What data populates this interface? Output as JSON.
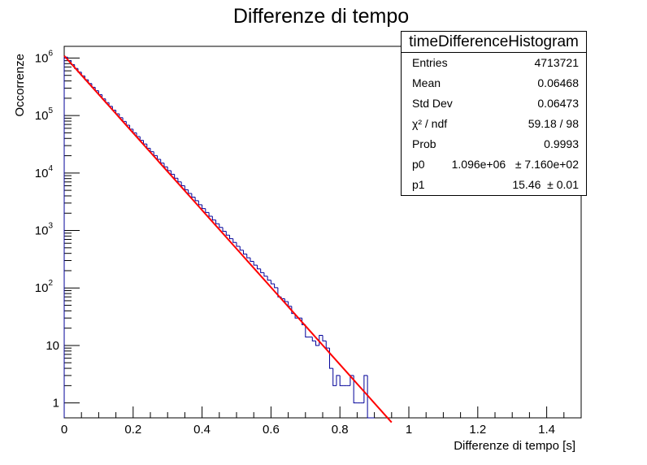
{
  "title": "Differenze di tempo",
  "stats": {
    "title": "timeDifferenceHistogram",
    "rows": [
      {
        "label": "Entries",
        "value": "4713721"
      },
      {
        "label": "Mean",
        "value": "0.06468"
      },
      {
        "label": "Std Dev",
        "value": "0.06473"
      },
      {
        "label": "χ² / ndf",
        "value": "59.18 / 98"
      },
      {
        "label": "Prob",
        "value": "0.9993"
      },
      {
        "label": "p0",
        "value": "1.096e+06   ± 7.160e+02"
      },
      {
        "label": "p1",
        "value": "15.46  ± 0.01"
      }
    ]
  },
  "colors": {
    "histogram": "#000099",
    "fit": "#ff0000",
    "axes": "#000000"
  },
  "chart_data": {
    "type": "histogram",
    "title": "Differenze di tempo",
    "xlabel": "Differenze di tempo [s]",
    "ylabel": "Occorrenze",
    "xlim": [
      0,
      1.5
    ],
    "ylim": [
      0.55,
      1600000
    ],
    "yscale": "log",
    "grid": false,
    "legend": "none",
    "x_ticks": [
      0,
      0.2,
      0.4,
      0.6,
      0.8,
      1,
      1.2,
      1.4
    ],
    "x_tick_labels": [
      "0",
      "0.2",
      "0.4",
      "0.6",
      "0.8",
      "1",
      "1.2",
      "1.4"
    ],
    "y_ticks": [
      1,
      10,
      100,
      1000,
      10000,
      100000,
      1000000
    ],
    "y_tick_labels": [
      {
        "base": "1",
        "exp": ""
      },
      {
        "base": "10",
        "exp": ""
      },
      {
        "base": "10",
        "exp": "2"
      },
      {
        "base": "10",
        "exp": "3"
      },
      {
        "base": "10",
        "exp": "4"
      },
      {
        "base": "10",
        "exp": "5"
      },
      {
        "base": "10",
        "exp": "6"
      }
    ],
    "bin_width": 0.01,
    "bin_start": 0,
    "counts": [
      1040000,
      900000,
      770000,
      660000,
      570000,
      490000,
      420000,
      360000,
      310000,
      270000,
      230000,
      195000,
      168000,
      145000,
      124000,
      107000,
      92000,
      79000,
      68000,
      58000,
      50000,
      43000,
      37000,
      32000,
      27000,
      23500,
      20100,
      17300,
      14900,
      12800,
      11000,
      9500,
      8100,
      7000,
      6000,
      5100,
      4400,
      3800,
      3300,
      2800,
      2400,
      2060,
      1770,
      1520,
      1310,
      1130,
      970,
      830,
      720,
      620,
      530,
      455,
      390,
      335,
      290,
      250,
      215,
      185,
      160,
      137,
      118,
      101,
      70,
      65,
      58,
      48,
      36,
      30,
      30,
      23,
      14,
      14,
      12,
      10,
      15,
      12,
      9,
      4,
      2,
      3,
      2,
      2,
      2,
      3,
      1,
      1,
      1,
      3,
      0,
      0
    ],
    "fit": {
      "function": "exp(p0 + p1*x)",
      "label_p0": "1.096e+06",
      "label_p1": "15.46",
      "amplitude": 1096000,
      "slope": -15.46,
      "x_range": [
        0,
        0.95
      ]
    }
  }
}
